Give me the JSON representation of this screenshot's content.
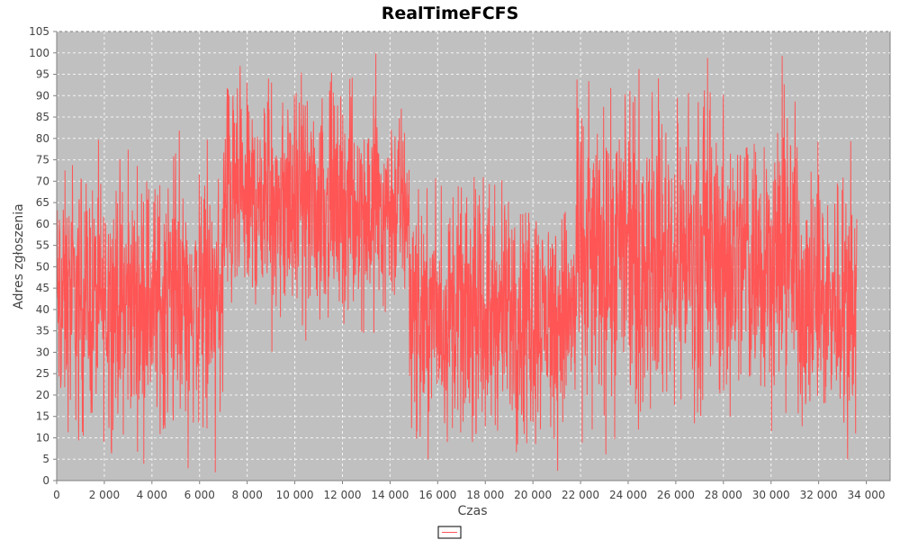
{
  "chart_data": {
    "type": "line",
    "title": "RealTimeFCFS",
    "xlabel": "Czas",
    "ylabel": "Adres zgłoszenia",
    "xlim": [
      0,
      35000
    ],
    "ylim": [
      0,
      105
    ],
    "xticks": [
      0,
      2000,
      4000,
      6000,
      8000,
      10000,
      12000,
      14000,
      16000,
      18000,
      20000,
      22000,
      24000,
      26000,
      28000,
      30000,
      32000,
      34000
    ],
    "xtick_labels": [
      "0",
      "2 000",
      "4 000",
      "6 000",
      "8 000",
      "10 000",
      "12 000",
      "14 000",
      "16 000",
      "18 000",
      "20 000",
      "22 000",
      "24 000",
      "26 000",
      "28 000",
      "30 000",
      "32 000",
      "34 000"
    ],
    "yticks": [
      0,
      5,
      10,
      15,
      20,
      25,
      30,
      35,
      40,
      45,
      50,
      55,
      60,
      65,
      70,
      75,
      80,
      85,
      90,
      95,
      100,
      105
    ],
    "grid": true,
    "legend": "bottom-center",
    "colors": {
      "series": "#ff5555",
      "plot_background": "#c0c0c0",
      "grid": "#ffffff"
    },
    "series": [
      {
        "name": "",
        "segments": [
          {
            "x_start": 0,
            "x_end": 7000,
            "min": 1,
            "max": 83
          },
          {
            "x_start": 7000,
            "x_end": 14800,
            "min": 29,
            "max": 100
          },
          {
            "x_start": 14800,
            "x_end": 21800,
            "min": 1,
            "max": 76
          },
          {
            "x_start": 21800,
            "x_end": 31200,
            "min": 5,
            "max": 100
          },
          {
            "x_start": 31200,
            "x_end": 33600,
            "min": 1,
            "max": 84
          }
        ]
      }
    ]
  }
}
